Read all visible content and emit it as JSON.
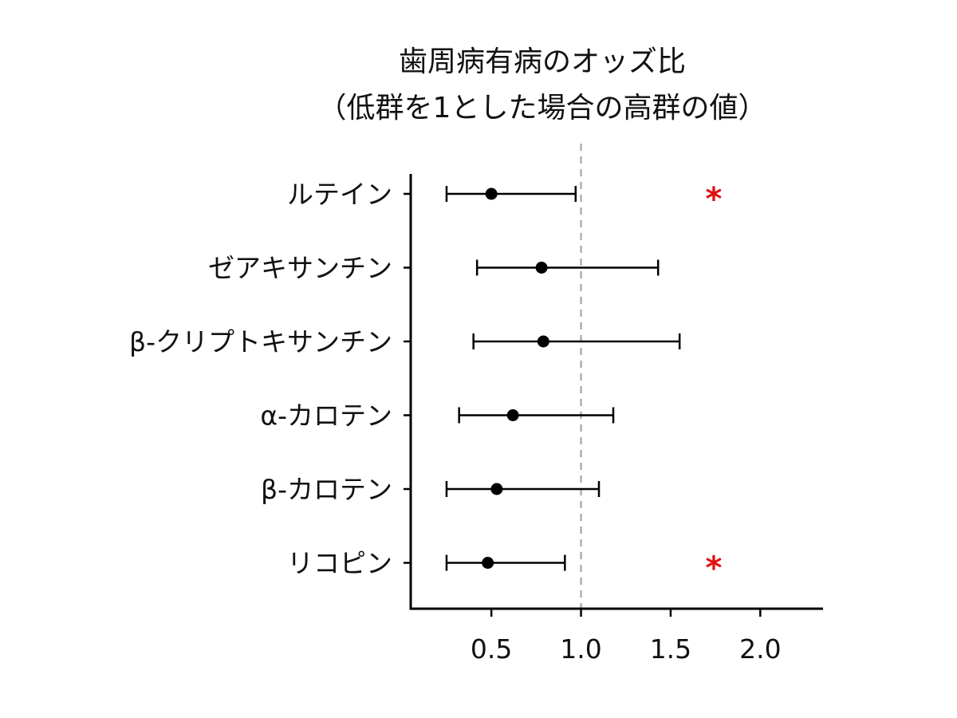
{
  "title_line1": "歯周病有病のオッズ比",
  "title_line2": "（低群を1とした場合の高群の値）",
  "chart_data": {
    "type": "forest",
    "categories": [
      "ルテイン",
      "ゼアキサンチン",
      "β-クリプトキサンチン",
      "α-カロテン",
      "β-カロテン",
      "リコピン"
    ],
    "series": [
      {
        "odds_ratio": [
          0.5,
          0.78,
          0.79,
          0.62,
          0.53,
          0.48
        ],
        "ci_lower": [
          0.25,
          0.42,
          0.4,
          0.32,
          0.25,
          0.25
        ],
        "ci_upper": [
          0.97,
          1.43,
          1.55,
          1.18,
          1.1,
          0.91
        ]
      }
    ],
    "significant": [
      true,
      false,
      false,
      false,
      false,
      true
    ],
    "significance_marker": "*",
    "reference_line": 1.0,
    "xlim": [
      0.05,
      2.35
    ],
    "x_ticks": [
      0.5,
      1.0,
      1.5,
      2.0
    ],
    "x_tick_labels": [
      "0.5",
      "1.0",
      "1.5",
      "2.0"
    ],
    "xlabel": "",
    "ylabel": "",
    "grid": false,
    "colors": {
      "points": "#000000",
      "reference": "#b0b0b0",
      "marker": "#e01010"
    }
  }
}
